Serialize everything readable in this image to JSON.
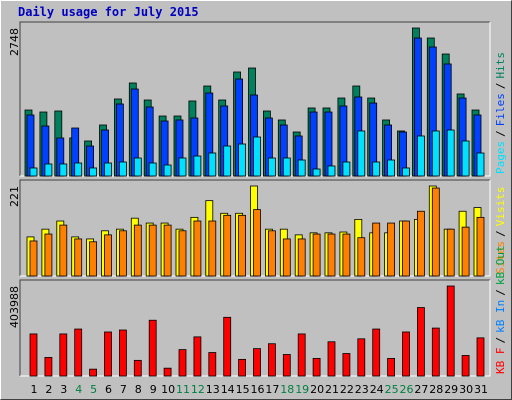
{
  "chart_data": [
    {
      "type": "bar",
      "title": "Daily usage for July 2015",
      "legend_separator": "/",
      "ylim": [
        0,
        2748
      ],
      "yticks": [
        2748
      ],
      "series": [
        {
          "name": "Hits",
          "color": "#00805c",
          "values": [
            1225,
            1188,
            1207,
            706,
            650,
            947,
            1430,
            1727,
            1411,
            1114,
            1114,
            1393,
            1671,
            1411,
            1931,
            2005,
            1207,
            1040,
            817,
            1263,
            1263,
            1448,
            1671,
            1448,
            1040,
            836,
            2748,
            2562,
            2265,
            1523,
            1225
          ]
        },
        {
          "name": "Files",
          "color": "#0040ff",
          "values": [
            1133,
            928,
            706,
            891,
            557,
            854,
            1337,
            1615,
            1281,
            1021,
            1040,
            1077,
            1541,
            1300,
            1801,
            1504,
            1077,
            947,
            743,
            1188,
            1188,
            1300,
            1467,
            1355,
            947,
            817,
            2562,
            2395,
            2080,
            1448,
            1133
          ]
        },
        {
          "name": "Pages",
          "color": "#00e0ff",
          "values": [
            149,
            223,
            223,
            241,
            149,
            241,
            260,
            334,
            241,
            204,
            334,
            371,
            427,
            557,
            594,
            724,
            334,
            334,
            297,
            130,
            186,
            260,
            836,
            260,
            297,
            149,
            743,
            836,
            854,
            650,
            427
          ]
        }
      ]
    },
    {
      "type": "bar",
      "legend_separator": "/",
      "ylim": [
        0,
        221
      ],
      "yticks": [
        221
      ],
      "series": [
        {
          "name": "Visits",
          "color": "#ffff00",
          "values": [
            96,
            115,
            135,
            96,
            91,
            111,
            115,
            142,
            130,
            130,
            115,
            144,
            185,
            154,
            154,
            221,
            115,
            115,
            101,
            106,
            106,
            108,
            139,
            106,
            106,
            135,
            139,
            221,
            115,
            159,
            168
          ]
        },
        {
          "name": "Sites",
          "color": "#ff8000",
          "values": [
            86,
            103,
            125,
            91,
            84,
            101,
            111,
            125,
            125,
            125,
            111,
            135,
            135,
            149,
            149,
            163,
            111,
            91,
            91,
            103,
            103,
            103,
            94,
            130,
            130,
            135,
            159,
            216,
            115,
            120,
            144
          ]
        }
      ]
    },
    {
      "type": "bar",
      "legend_separator": "/",
      "ylim": [
        0,
        403988
      ],
      "yticks": [
        403988
      ],
      "categories": [
        "1",
        "2",
        "3",
        "4",
        "5",
        "6",
        "7",
        "8",
        "9",
        "10",
        "11",
        "12",
        "13",
        "14",
        "15",
        "16",
        "17",
        "18",
        "19",
        "20",
        "21",
        "22",
        "23",
        "24",
        "25",
        "26",
        "27",
        "28",
        "29",
        "30",
        "31"
      ],
      "category_colors": [
        "#000000",
        "#000000",
        "#000000",
        "#008040",
        "#008040",
        "#000000",
        "#000000",
        "#000000",
        "#000000",
        "#000000",
        "#008040",
        "#008040",
        "#000000",
        "#000000",
        "#000000",
        "#000000",
        "#000000",
        "#008040",
        "#008040",
        "#000000",
        "#000000",
        "#000000",
        "#000000",
        "#000000",
        "#008040",
        "#008040",
        "#000000",
        "#000000",
        "#000000",
        "#000000",
        "#000000"
      ],
      "series": [
        {
          "name": "kB Out",
          "color": "#00a040",
          "values": [
            0,
            0,
            0,
            0,
            0,
            0,
            0,
            0,
            0,
            0,
            0,
            0,
            0,
            0,
            0,
            0,
            0,
            0,
            0,
            0,
            0,
            0,
            0,
            0,
            0,
            0,
            0,
            0,
            0,
            0,
            0
          ]
        },
        {
          "name": "kB In",
          "color": "#0080ff",
          "values": [
            0,
            0,
            0,
            0,
            0,
            0,
            0,
            0,
            0,
            0,
            0,
            0,
            0,
            0,
            0,
            0,
            0,
            0,
            0,
            0,
            0,
            0,
            0,
            0,
            0,
            0,
            0,
            0,
            0,
            0,
            0
          ]
        },
        {
          "name": "KB F",
          "color": "#ff0000",
          "values": [
            188825,
            83432,
            188825,
            210781,
            30739,
            197608,
            206390,
            70258,
            250303,
            35129,
            118562,
            175651,
            105389,
            263477,
            74650,
            122953,
            144909,
            96606,
            188825,
            79041,
            153692,
            100998,
            166869,
            210781,
            79041,
            197608,
            307390,
            215172,
            403988,
            92215,
            171260
          ]
        }
      ]
    }
  ]
}
